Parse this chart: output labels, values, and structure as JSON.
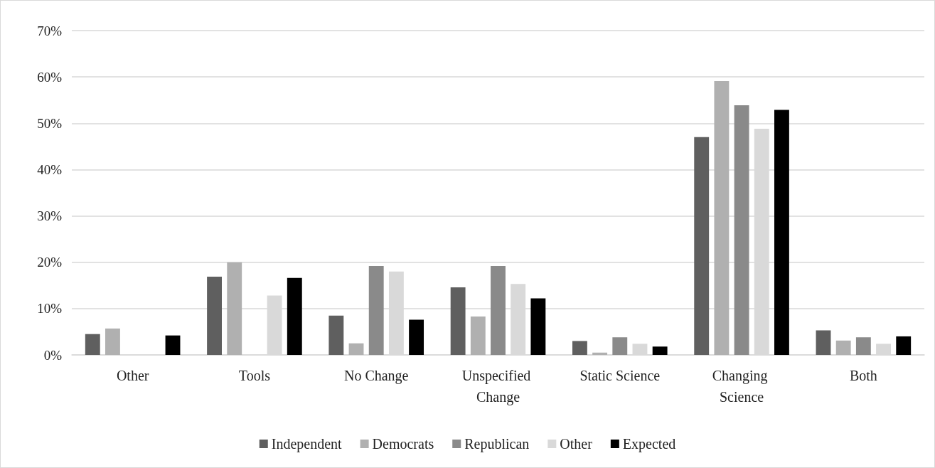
{
  "chart_data": {
    "type": "bar",
    "categories": [
      "Other",
      "Tools",
      "No Change",
      "Unspecified Change",
      "Static Science",
      "Changing Science",
      "Both"
    ],
    "series": [
      {
        "name": "Independent",
        "color": "#5f5f5f",
        "values": [
          4.5,
          16.9,
          8.5,
          14.6,
          3.0,
          47.0,
          5.3
        ]
      },
      {
        "name": "Democrats",
        "color": "#b0b0b0",
        "values": [
          5.7,
          20.0,
          2.5,
          8.3,
          0.5,
          59.1,
          3.1
        ]
      },
      {
        "name": "Republican",
        "color": "#8a8a8a",
        "values": [
          0,
          0,
          19.2,
          19.2,
          3.8,
          53.9,
          3.8
        ]
      },
      {
        "name": "Other",
        "color": "#d9d9d9",
        "values": [
          0,
          12.8,
          18.0,
          15.3,
          2.4,
          48.8,
          2.4
        ]
      },
      {
        "name": "Expected",
        "color": "#000000",
        "values": [
          4.2,
          16.6,
          7.6,
          12.2,
          1.8,
          52.9,
          4.0
        ]
      }
    ],
    "ylim": [
      0,
      70
    ],
    "yticks": [
      {
        "value": 0,
        "label": "0%"
      },
      {
        "value": 10,
        "label": "10%"
      },
      {
        "value": 20,
        "label": "20%"
      },
      {
        "value": 30,
        "label": "30%"
      },
      {
        "value": 40,
        "label": "40%"
      },
      {
        "value": 50,
        "label": "50%"
      },
      {
        "value": 60,
        "label": "60%"
      },
      {
        "value": 70,
        "label": "70%"
      }
    ],
    "grid": "y",
    "legend": "bottom"
  }
}
